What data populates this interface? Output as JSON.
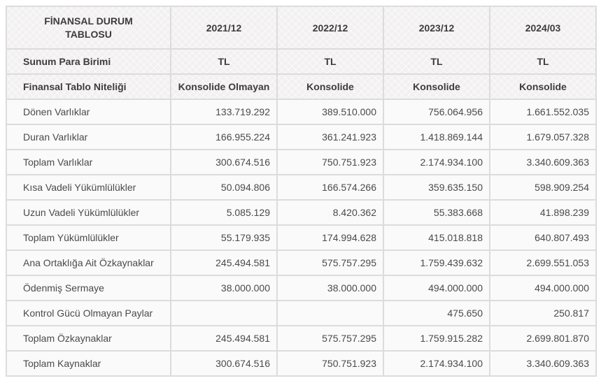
{
  "colors": {
    "border": "#dcdcdc",
    "header_background": "#f2f0f1",
    "cell_background": "#fafafa",
    "header_text": "#3d3d3d",
    "cell_text": "#4a4a4a",
    "page_background": "#ffffff"
  },
  "chart_data": {
    "type": "table",
    "title": "FİNANSAL DURUM TABLOSU",
    "columns": [
      "2021/12",
      "2022/12",
      "2023/12",
      "2024/03"
    ],
    "meta_rows": [
      {
        "label": "Sunum Para Birimi",
        "values": [
          "TL",
          "TL",
          "TL",
          "TL"
        ]
      },
      {
        "label": "Finansal Tablo Niteliği",
        "values": [
          "Konsolide Olmayan",
          "Konsolide",
          "Konsolide",
          "Konsolide"
        ]
      }
    ],
    "rows": [
      {
        "label": "Dönen Varlıklar",
        "values": [
          "133.719.292",
          "389.510.000",
          "756.064.956",
          "1.661.552.035"
        ]
      },
      {
        "label": "Duran Varlıklar",
        "values": [
          "166.955.224",
          "361.241.923",
          "1.418.869.144",
          "1.679.057.328"
        ]
      },
      {
        "label": "Toplam Varlıklar",
        "values": [
          "300.674.516",
          "750.751.923",
          "2.174.934.100",
          "3.340.609.363"
        ]
      },
      {
        "label": "Kısa Vadeli Yükümlülükler",
        "values": [
          "50.094.806",
          "166.574.266",
          "359.635.150",
          "598.909.254"
        ]
      },
      {
        "label": "Uzun Vadeli Yükümlülükler",
        "values": [
          "5.085.129",
          "8.420.362",
          "55.383.668",
          "41.898.239"
        ]
      },
      {
        "label": "Toplam Yükümlülükler",
        "values": [
          "55.179.935",
          "174.994.628",
          "415.018.818",
          "640.807.493"
        ]
      },
      {
        "label": "Ana Ortaklığa Ait Özkaynaklar",
        "values": [
          "245.494.581",
          "575.757.295",
          "1.759.439.632",
          "2.699.551.053"
        ]
      },
      {
        "label": "Ödenmiş Sermaye",
        "values": [
          "38.000.000",
          "38.000.000",
          "494.000.000",
          "494.000.000"
        ]
      },
      {
        "label": "Kontrol Gücü Olmayan Paylar",
        "values": [
          "",
          "",
          "475.650",
          "250.817"
        ]
      },
      {
        "label": "Toplam Özkaynaklar",
        "values": [
          "245.494.581",
          "575.757.295",
          "1.759.915.282",
          "2.699.801.870"
        ]
      },
      {
        "label": "Toplam Kaynaklar",
        "values": [
          "300.674.516",
          "750.751.923",
          "2.174.934.100",
          "3.340.609.363"
        ]
      }
    ]
  }
}
